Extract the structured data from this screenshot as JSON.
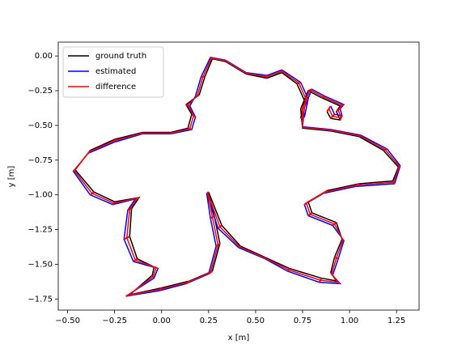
{
  "chart_data": {
    "type": "trajectory",
    "xlabel": "x [m]",
    "ylabel": "y [m]",
    "xlim": [
      -0.55,
      1.37
    ],
    "ylim": [
      -1.83,
      0.1
    ],
    "xticks": [
      {
        "value": -0.5,
        "label": "−0.50"
      },
      {
        "value": -0.25,
        "label": "−0.25"
      },
      {
        "value": 0,
        "label": "0.00"
      },
      {
        "value": 0.25,
        "label": "0.25"
      },
      {
        "value": 0.5,
        "label": "0.50"
      },
      {
        "value": 0.75,
        "label": "0.75"
      },
      {
        "value": 1,
        "label": "1.00"
      },
      {
        "value": 1.25,
        "label": "1.25"
      }
    ],
    "yticks": [
      {
        "value": 0,
        "label": "0.00"
      },
      {
        "value": -0.25,
        "label": "−0.25"
      },
      {
        "value": -0.5,
        "label": "−0.50"
      },
      {
        "value": -0.75,
        "label": "−0.75"
      },
      {
        "value": -1,
        "label": "−1.00"
      },
      {
        "value": -1.25,
        "label": "−1.25"
      },
      {
        "value": -1.5,
        "label": "−1.50"
      },
      {
        "value": -1.75,
        "label": "−1.75"
      }
    ],
    "legend": "upper left",
    "series": [
      {
        "name": "ground truth",
        "color": "#000000",
        "x": [
          0.88,
          0.9,
          0.95,
          0.93,
          0.95,
          0.85,
          0.78,
          0.74,
          0.75,
          0.9,
          1.05,
          1.18,
          1.26,
          1.23,
          1.05,
          0.88,
          0.78,
          0.8,
          0.93,
          0.96,
          0.92,
          0.9,
          0.93,
          0.85,
          0.68,
          0.55,
          0.42,
          0.32,
          0.25,
          0.28,
          0.31,
          0.27,
          0.15,
          0,
          -0.17,
          -0.05,
          -0.04,
          -0.13,
          -0.17,
          -0.16,
          -0.12,
          -0.25,
          -0.36,
          -0.46,
          -0.38,
          -0.25,
          -0.1,
          0.05,
          0.14,
          0.16,
          0.13,
          0.2,
          0.23,
          0.27,
          0.34,
          0.45,
          0.56,
          0.64,
          0.72,
          0.76,
          0.74
        ],
        "values": [
          -0.4,
          -0.45,
          -0.46,
          -0.4,
          -0.36,
          -0.3,
          -0.25,
          -0.38,
          -0.52,
          -0.54,
          -0.58,
          -0.68,
          -0.8,
          -0.9,
          -0.92,
          -0.97,
          -1.05,
          -1.13,
          -1.2,
          -1.32,
          -1.45,
          -1.56,
          -1.62,
          -1.6,
          -1.53,
          -1.45,
          -1.37,
          -1.22,
          -0.98,
          -1.15,
          -1.35,
          -1.55,
          -1.62,
          -1.67,
          -1.72,
          -1.58,
          -1.52,
          -1.46,
          -1.3,
          -1.1,
          -1.02,
          -1.05,
          -0.98,
          -0.82,
          -0.68,
          -0.6,
          -0.55,
          -0.55,
          -0.52,
          -0.42,
          -0.35,
          -0.28,
          -0.15,
          -0.02,
          -0.04,
          -0.13,
          -0.16,
          -0.12,
          -0.2,
          -0.32,
          -0.45
        ]
      },
      {
        "name": "estimated",
        "color": "#0000ff",
        "x": [
          0.9,
          0.92,
          0.96,
          0.95,
          0.97,
          0.87,
          0.8,
          0.76,
          0.75,
          0.9,
          1.06,
          1.2,
          1.27,
          1.24,
          1.03,
          0.86,
          0.76,
          0.78,
          0.91,
          0.97,
          0.94,
          0.91,
          0.95,
          0.84,
          0.67,
          0.55,
          0.41,
          0.3,
          0.24,
          0.26,
          0.29,
          0.25,
          0.13,
          -0.01,
          -0.19,
          -0.04,
          -0.02,
          -0.15,
          -0.2,
          -0.18,
          -0.14,
          -0.26,
          -0.38,
          -0.47,
          -0.39,
          -0.25,
          -0.1,
          0.05,
          0.16,
          0.18,
          0.15,
          0.18,
          0.21,
          0.26,
          0.34,
          0.45,
          0.56,
          0.64,
          0.74,
          0.78,
          0.76
        ],
        "values": [
          -0.36,
          -0.42,
          -0.43,
          -0.38,
          -0.35,
          -0.29,
          -0.24,
          -0.37,
          -0.51,
          -0.53,
          -0.57,
          -0.67,
          -0.79,
          -0.92,
          -0.94,
          -0.99,
          -1.07,
          -1.15,
          -1.22,
          -1.33,
          -1.46,
          -1.58,
          -1.64,
          -1.63,
          -1.55,
          -1.46,
          -1.38,
          -1.24,
          -0.99,
          -1.17,
          -1.37,
          -1.57,
          -1.64,
          -1.69,
          -1.73,
          -1.6,
          -1.53,
          -1.48,
          -1.32,
          -1.11,
          -1.03,
          -1.07,
          -1.0,
          -0.83,
          -0.7,
          -0.62,
          -0.56,
          -0.56,
          -0.53,
          -0.44,
          -0.36,
          -0.29,
          -0.15,
          -0.01,
          -0.03,
          -0.12,
          -0.14,
          -0.1,
          -0.19,
          -0.31,
          -0.44
        ]
      },
      {
        "name": "difference",
        "color": "#ff0000"
      }
    ]
  }
}
